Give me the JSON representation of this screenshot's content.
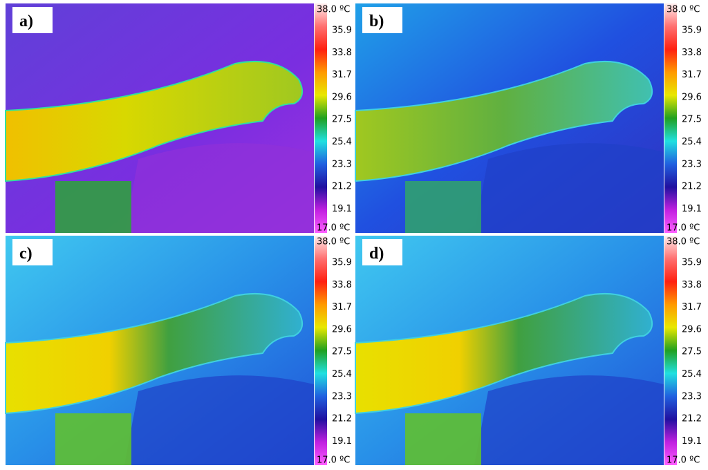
{
  "panels": [
    {
      "label": "a)",
      "scale": {
        "max_label": "38.0 ºC",
        "ticks": [
          "35.9",
          "33.8",
          "31.7",
          "29.6",
          "27.5",
          "25.4",
          "23.3",
          "21.2",
          "19.1"
        ],
        "min_label": "17.0 ºC"
      }
    },
    {
      "label": "b)",
      "scale": {
        "max_label": "38.0 ºC",
        "ticks": [
          "35.9",
          "33.8",
          "31.7",
          "29.6",
          "27.5",
          "25.4",
          "23.3",
          "21.2",
          "19.1"
        ],
        "min_label": "17.0 ºC"
      }
    },
    {
      "label": "c)",
      "scale": {
        "max_label": "38.0 ºC",
        "ticks": [
          "35.9",
          "33.8",
          "31.7",
          "29.6",
          "27.5",
          "25.4",
          "23.3",
          "21.2",
          "19.1"
        ],
        "min_label": "17.0 ºC"
      }
    },
    {
      "label": "d)",
      "scale": {
        "max_label": "38.0 ºC",
        "ticks": [
          "35.9",
          "33.8",
          "31.7",
          "29.6",
          "27.5",
          "25.4",
          "23.3",
          "21.2",
          "19.1"
        ],
        "min_label": "17.0 ºC"
      }
    }
  ]
}
